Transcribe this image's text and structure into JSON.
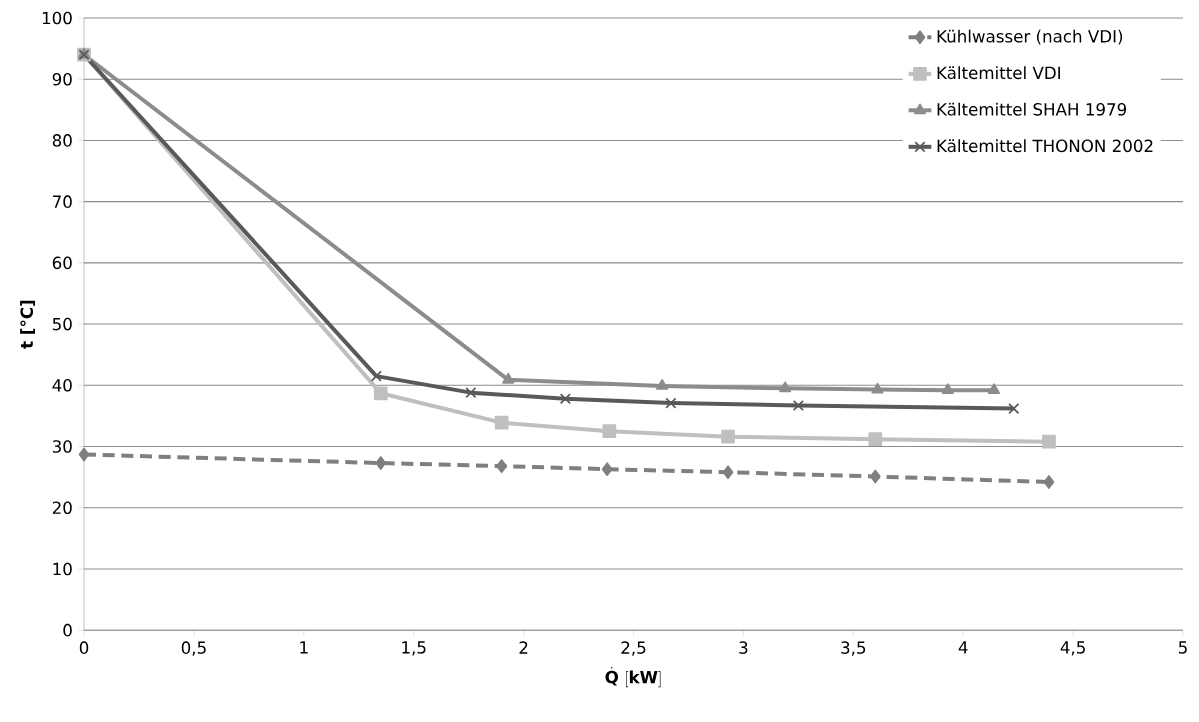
{
  "chart_data": {
    "type": "line",
    "xlabel": "\\dot{\\mathbf{Q}}\\ \\mathbf{[kW]}",
    "ylabel": "t [°C]",
    "xlim": [
      0,
      5
    ],
    "xticks": [
      {
        "value": 0,
        "label": "0"
      },
      {
        "value": 0.5,
        "label": "0,5"
      },
      {
        "value": 1,
        "label": "1"
      },
      {
        "value": 1.5,
        "label": "1,5"
      },
      {
        "value": 2,
        "label": "2"
      },
      {
        "value": 2.5,
        "label": "2,5"
      },
      {
        "value": 3,
        "label": "3"
      },
      {
        "value": 3.5,
        "label": "3,5"
      },
      {
        "value": 4,
        "label": "4"
      },
      {
        "value": 4.5,
        "label": "4,5"
      },
      {
        "value": 5,
        "label": "5"
      }
    ],
    "ylim": [
      0,
      100
    ],
    "yticks": [
      0,
      10,
      20,
      30,
      40,
      50,
      60,
      70,
      80,
      90,
      100
    ],
    "grid": "y",
    "legend": "top right",
    "series": [
      {
        "name": "Kühlwasser (nach VDI)",
        "color": "#7f7f7f",
        "marker": "diamond",
        "line_style": "dashed",
        "x": [
          0,
          1.35,
          1.9,
          2.38,
          2.93,
          3.6,
          4.39
        ],
        "values": [
          28.7,
          27.3,
          26.8,
          26.3,
          25.8,
          25.1,
          24.2
        ]
      },
      {
        "name": "Kältemittel VDI",
        "color": "#bfbfbf",
        "marker": "square",
        "line_style": "solid",
        "x": [
          0,
          1.35,
          1.9,
          2.39,
          2.93,
          3.6,
          4.39
        ],
        "values": [
          94,
          38.7,
          33.9,
          32.5,
          31.6,
          31.2,
          30.8
        ]
      },
      {
        "name": "Kältemittel SHAH 1979",
        "color": "#8c8c8c",
        "marker": "triangle",
        "line_style": "solid",
        "x": [
          0,
          1.93,
          2.63,
          3.19,
          3.61,
          3.93,
          4.14
        ],
        "values": [
          94,
          40.9,
          39.9,
          39.5,
          39.3,
          39.2,
          39.2
        ]
      },
      {
        "name": "Kältemittel THONON 2002",
        "color": "#595959",
        "marker": "cross",
        "line_style": "solid",
        "x": [
          0,
          1.33,
          1.76,
          2.19,
          2.67,
          3.25,
          4.23
        ],
        "values": [
          94,
          41.5,
          38.8,
          37.8,
          37.1,
          36.7,
          36.2
        ]
      }
    ]
  }
}
